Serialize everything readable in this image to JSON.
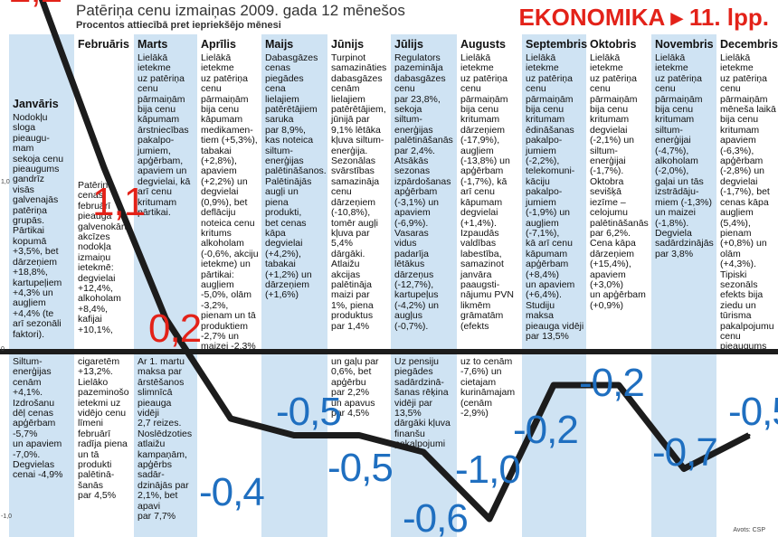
{
  "title": "Patēriņa cenu izmaiņas 2009. gada 12 mēnešos",
  "subtitle": "Procentos attiecībā pret iepriekšējo mēnesi",
  "section_link": "EKONOMIKA ▸ 11. lpp.",
  "source": "Avots: CSP",
  "colors": {
    "line": "#1c1c1c",
    "positive": "#e32219",
    "negative": "#1f6fc0",
    "band": "#cfe3f3",
    "text": "#111111"
  },
  "chart_data": {
    "type": "line",
    "title": "Patēriņa cenu izmaiņas 2009. gada 12 mēnešos",
    "subtitle": "Procentos attiecībā pret iepriekšējo mēnesi",
    "categories": [
      "Janvāris",
      "Februāris",
      "Marts",
      "Aprīlis",
      "Maijs",
      "Jūnijs",
      "Jūlijs",
      "Augusts",
      "Septembris",
      "Oktobris",
      "Novembris",
      "Decembris"
    ],
    "values": [
      2.2,
      1.1,
      0.2,
      -0.4,
      -0.5,
      -0.5,
      -0.6,
      -1.0,
      -0.2,
      -0.2,
      -0.7,
      -0.5
    ],
    "value_labels": [
      "2,2",
      "1,1",
      "0,2",
      "-0,4",
      "-0,5",
      "-0,5",
      "-0,6",
      "-1,0",
      "-0,2",
      "-0,2",
      "-0,7",
      "-0,5"
    ],
    "y_ticks": [
      "1,0",
      "0",
      "-1,0"
    ],
    "ylim": [
      -1.0,
      2.2
    ],
    "grid": false
  },
  "months": [
    {
      "name": "Janvāris",
      "text": "Nodokļu\nsloga\npieaugu-\nmam\nsekoja cenu\npieaugums\ngandrīz\nvisās\ngalvenajās\npatēriņa\ngrupās.\nPārtikai\nkopumā\n+3,5%, bet\ndārzeņiem\n+18,8%,\nkartupeļiem\n+4,3% un\naugļiem\n+4,4% (te\narī sezonāli\nfaktori).",
      "text2": "Siltum-\nenerģijas\ncenām\n+4,1%.\nIzdrošanu\ndēļ cenas\napģērbam\n-5,7%\nun apaviem\n-7,0%.\nDegvielas\ncenai -4,9%"
    },
    {
      "name": "Februāris",
      "text": "Patēriņa\ncenas\nfebruārī\npieauga\ngalvenokārt\nakcīzes\nnodokļa\nizmaiņu\nietekmē:\ndegvielai\n+12,4%,\nalkoholam\n+8,4%,\nkafijai\n+10,1%,",
      "text2": "cigaretēm\n+13,2%.\nLielāko\npazeminošo\nietekmi uz\nvidējo cenu\nlīmeni\nfebruārī\nradīja piena\nun tā\nprodukti\npalētinā-\nšanās\npar 4,5%"
    },
    {
      "name": "Marts",
      "text": "Lielākā\nietekme\nuz patēriņa\ncenu\npārmaiņām\nbija cenu\nkāpumam\nārstniecības\npakalpo-\njumiem,\napģērbam,\napaviem un\ndegvielai, kā\narī cenu\nkritumam\npārtikai.",
      "text2": "Ar 1. martu\nmaksa par\nārstēšanos\nslimnīcā\npieauga\nvidēji\n2,7 reizes.\nNoslēdzoties\natlaižu\nkampaņām,\napģērbs\nsadār-\ndzinājās par\n2,1%, bet\napavi\npar 7,7%"
    },
    {
      "name": "Aprīlis",
      "text": "Lielākā\nietekme\nuz patēriņa\ncenu\npārmaiņām\nbija cenu\nkāpumam\nmedikamen-\ntiem (+5,3%),\ntabakai\n(+2,8%),\napaviem\n(+2,2%) un\ndegvielai\n(0,9%), bet\ndeflāciju\nnoteica cenu\nkritums\nalkoholam\n(-0,6%, akciju\nietekme) un\npārtikai:\naugļiem\n-5,0%, olām\n-3,2%,\npienam un tā\nproduktiem\n-2,7% un\nmaizei -2,3%",
      "text2": ""
    },
    {
      "name": "Maijs",
      "text": "Dabasgāzes\ncenas\npiegādes\ncena\nlielajiem\npatērētājiem\nsaruka\npar 8,9%,\nkas noteica\nsiltum-\nenerģijas\npalētināšanos.\nPalētinājās\naugļi un\npiena\nprodukti,\nbet cenas\nkāpa\ndegvielai\n(+4,2%),\ntabakai\n(+1,2%) un\ndārzeņiem\n(+1,6%)",
      "text2": ""
    },
    {
      "name": "Jūnijs",
      "text": "Turpinot\nsamazināties\ndabasgāzes\ncenām\nlielajiem\npatērētājiem,\njūnijā par\n9,1% lētāka\nkļuva siltum-\nenerģija.\nSezonālas\nsvārstības\nsamazināja\ncenu\ndārzeņiem\n(-10,8%),\ntomēr augļi\nkļuva par\n5,4%\ndārgāki.\nAtlaižu\nakcijas\npalētināja\nmaizi par\n1%, piena\nproduktus\npar 1,4%",
      "text2": "un gaļu par\n0,6%, bet\napģērbu\npar 2,2%\nun apavus\npar 4,5%"
    },
    {
      "name": "Jūlijs",
      "text": "Regulators\npazemināja\ndabasgāzes\ncenu\npar 23,8%,\nsekoja\nsiltum-\nenerģijas\npalētināšanās\npar 2,4%.\nAtsākās\nsezonas\nizpārdošanas\napģērbam\n(-3,1%) un\napaviem\n(-6,9%).\nVasaras\nvidus\npadarīja\nlētākus\ndārzeņus\n(-12,7%),\nkartupeļus\n(-4,2%) un\naugļus\n(-0,7%).",
      "text2": "Uz pensiju\npiegādes\nsadārdzinā-\nšanas rēķina\nvidēji par\n13,5%\ndārgāki kļuva\nfinanšu\npakalpojumi"
    },
    {
      "name": "Augusts",
      "text": "Lielākā\nietekme\nuz patēriņa\ncenu\npārmaiņām\nbija cenu\nkritumam\ndārzeņiem\n(-17,9%),\naugļiem\n(-13,8%) un\napģērbam\n(-1,7%), kā\narī cenu\nkāpumam\ndegvielai\n(+1,4%).\nIzpaudās\nvaldības\nlabestība,\nsamazinot\njanvāra\npaaugsti-\nnājumu PVN\nlikmēm\ngrāmatām\n(efekts",
      "text2": "uz to cenām\n-7,6%) un\ncietajam\nkurināmajam\n(cenām\n-2,9%)"
    },
    {
      "name": "Septembris",
      "text": "Lielākā\nietekme\nuz patēriņa\ncenu\npārmaiņām\nbija cenu\nkritumam\nēdināšanas\npakalpo-\njumiem\n(-2,2%),\ntelekomuni-\nkāciju\npakalpo-\njumiem\n(-1,9%) un\naugļiem\n(-7,1%),\nkā arī cenu\nkāpumam\napģērbam\n(+8,4%)\nun apaviem\n(+6,4%).\nStudiju\nmaksa\npieauga vidēji\npar 13,5%",
      "text2": ""
    },
    {
      "name": "Oktobris",
      "text": "Lielākā\nietekme\nuz patēriņa\ncenu\npārmaiņām\nbija cenu\nkritumam\ndegvielai\n(-2,1%) un\nsiltum-\nenerģijai\n(-1,7%).\nOktobra\nsevišķā\niezīme –\ncelojumu\npalētināšanās\npar 6,2%.\nCena kāpa\ndārzeņiem\n(+15,4%),\napaviem\n(+3,0%)\nun apģērbam\n(+0,9%)",
      "text2": ""
    },
    {
      "name": "Novembris",
      "text": "Lielākā\nietekme\nuz patēriņa\ncenu\npārmaiņām\nbija cenu\nkritumam\nsiltum-\nenerģijai\n(-4,7%),\nalkoholam\n(-2,0%),\ngaļai un tās\nizstrādāju-\nmiem (-1,3%)\nun maizei\n(-1,8%).\nDegviela\nsadārdzinājās\npar 3,8%",
      "text2": ""
    },
    {
      "name": "Decembris",
      "text": "Lielākā\nietekme\nuz patēriņa\ncenu\npārmaiņām\nmēneša laikā\nbija cenu\nkritumam\napaviem\n(-6,3%),\napģērbam\n(-2,8%) un\ndegvielai\n(-1,7%), bet\ncenas kāpa\naugļiem\n(5,4%),\npienam\n(+0,8%) un\nolām (+4,3%).\nTipiski\nsezonāls\nefekts bija\nziedu un\ntūrisma\npakalpojumu\ncenu\npieaugums",
      "text2": ""
    }
  ]
}
